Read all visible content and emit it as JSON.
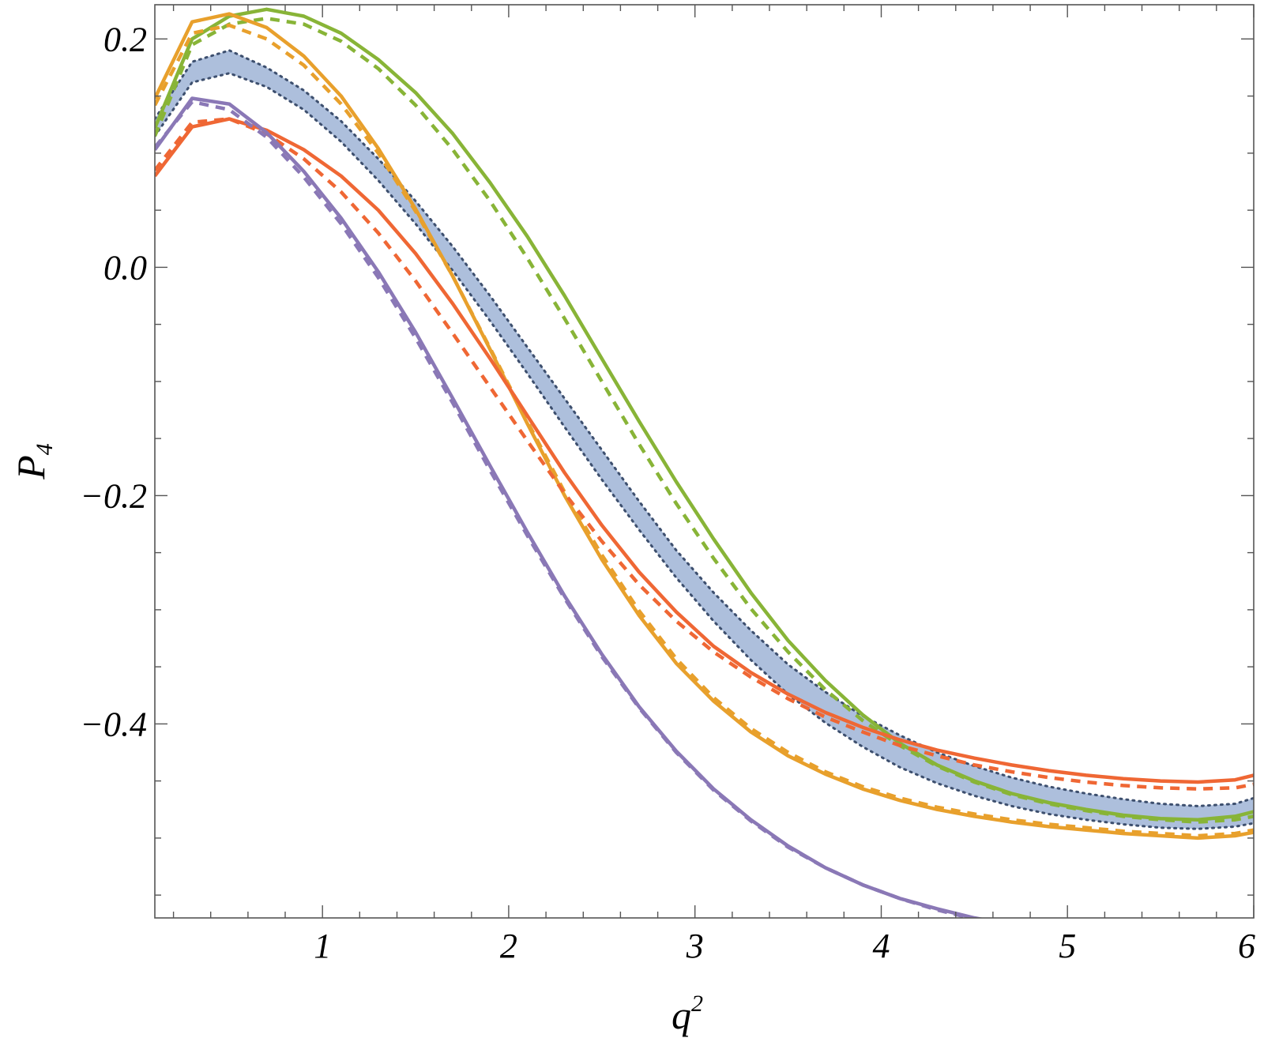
{
  "chart_data": {
    "type": "line",
    "title": "",
    "xlabel_base": "q",
    "xlabel_sup": "2",
    "ylabel_base": "P",
    "ylabel_sub": "4",
    "xlim": [
      0.1,
      6.0
    ],
    "ylim": [
      -0.57,
      0.23
    ],
    "x_ticks": [
      1,
      2,
      3,
      4,
      5,
      6
    ],
    "x_tick_labels": [
      "1",
      "2",
      "3",
      "4",
      "5",
      "6"
    ],
    "y_ticks": [
      0.2,
      0.0,
      -0.2,
      -0.4
    ],
    "y_tick_labels": [
      "0.2",
      "0.0",
      "−0.2",
      "−0.4"
    ],
    "grid": false,
    "legend": "none",
    "x": [
      0.1,
      0.3,
      0.5,
      0.7,
      0.9,
      1.1,
      1.3,
      1.5,
      1.7,
      1.9,
      2.1,
      2.3,
      2.5,
      2.7,
      2.9,
      3.1,
      3.3,
      3.5,
      3.7,
      3.9,
      4.1,
      4.3,
      4.5,
      4.7,
      4.9,
      5.1,
      5.3,
      5.5,
      5.7,
      5.9,
      6.0
    ],
    "band": {
      "color": "#adbfdc",
      "edge_color": "#3d4f6e",
      "upper": [
        0.13,
        0.18,
        0.19,
        0.175,
        0.155,
        0.128,
        0.095,
        0.058,
        0.018,
        -0.025,
        -0.07,
        -0.115,
        -0.16,
        -0.205,
        -0.248,
        -0.285,
        -0.318,
        -0.348,
        -0.372,
        -0.393,
        -0.41,
        -0.425,
        -0.437,
        -0.447,
        -0.455,
        -0.461,
        -0.466,
        -0.47,
        -0.472,
        -0.47,
        -0.465
      ],
      "lower": [
        0.115,
        0.162,
        0.17,
        0.158,
        0.138,
        0.11,
        0.076,
        0.038,
        -0.003,
        -0.047,
        -0.093,
        -0.14,
        -0.186,
        -0.23,
        -0.272,
        -0.31,
        -0.344,
        -0.374,
        -0.399,
        -0.42,
        -0.438,
        -0.452,
        -0.463,
        -0.472,
        -0.479,
        -0.484,
        -0.488,
        -0.491,
        -0.492,
        -0.49,
        -0.487
      ]
    },
    "series": [
      {
        "color": "#88b437",
        "style": "solid",
        "values": [
          0.122,
          0.2,
          0.22,
          0.226,
          0.22,
          0.205,
          0.182,
          0.153,
          0.117,
          0.074,
          0.027,
          -0.025,
          -0.08,
          -0.135,
          -0.188,
          -0.238,
          -0.285,
          -0.327,
          -0.362,
          -0.392,
          -0.417,
          -0.436,
          -0.45,
          -0.461,
          -0.469,
          -0.475,
          -0.48,
          -0.483,
          -0.484,
          -0.481,
          -0.477
        ]
      },
      {
        "color": "#88b437",
        "style": "dashed",
        "values": [
          0.115,
          0.195,
          0.213,
          0.218,
          0.213,
          0.198,
          0.174,
          0.142,
          0.103,
          0.058,
          0.008,
          -0.045,
          -0.1,
          -0.155,
          -0.207,
          -0.255,
          -0.299,
          -0.337,
          -0.37,
          -0.397,
          -0.419,
          -0.437,
          -0.451,
          -0.462,
          -0.47,
          -0.476,
          -0.481,
          -0.484,
          -0.486,
          -0.484,
          -0.481
        ]
      },
      {
        "color": "#e8a02c",
        "style": "solid",
        "values": [
          0.148,
          0.215,
          0.222,
          0.21,
          0.185,
          0.15,
          0.104,
          0.051,
          -0.008,
          -0.072,
          -0.137,
          -0.2,
          -0.256,
          -0.305,
          -0.347,
          -0.38,
          -0.407,
          -0.428,
          -0.444,
          -0.457,
          -0.467,
          -0.475,
          -0.481,
          -0.486,
          -0.49,
          -0.493,
          -0.496,
          -0.498,
          -0.5,
          -0.498,
          -0.495
        ]
      },
      {
        "color": "#e8a02c",
        "style": "dashed",
        "values": [
          0.142,
          0.205,
          0.212,
          0.2,
          0.177,
          0.143,
          0.1,
          0.049,
          -0.008,
          -0.071,
          -0.135,
          -0.197,
          -0.252,
          -0.301,
          -0.343,
          -0.377,
          -0.404,
          -0.425,
          -0.442,
          -0.455,
          -0.465,
          -0.473,
          -0.479,
          -0.484,
          -0.488,
          -0.491,
          -0.494,
          -0.496,
          -0.498,
          -0.496,
          -0.493
        ]
      },
      {
        "color": "#ef6734",
        "style": "solid",
        "values": [
          0.08,
          0.123,
          0.13,
          0.12,
          0.103,
          0.08,
          0.05,
          0.012,
          -0.032,
          -0.08,
          -0.13,
          -0.18,
          -0.226,
          -0.267,
          -0.302,
          -0.332,
          -0.355,
          -0.374,
          -0.39,
          -0.403,
          -0.414,
          -0.423,
          -0.43,
          -0.436,
          -0.441,
          -0.445,
          -0.448,
          -0.45,
          -0.451,
          -0.449,
          -0.445
        ]
      },
      {
        "color": "#ef6734",
        "style": "dashed",
        "values": [
          0.085,
          0.127,
          0.13,
          0.117,
          0.095,
          0.066,
          0.03,
          -0.012,
          -0.058,
          -0.105,
          -0.152,
          -0.198,
          -0.24,
          -0.278,
          -0.31,
          -0.337,
          -0.359,
          -0.378,
          -0.394,
          -0.407,
          -0.419,
          -0.428,
          -0.436,
          -0.442,
          -0.447,
          -0.451,
          -0.454,
          -0.456,
          -0.457,
          -0.456,
          -0.453
        ]
      },
      {
        "color": "#8a78b6",
        "style": "solid",
        "values": [
          0.103,
          0.148,
          0.143,
          0.118,
          0.084,
          0.043,
          -0.004,
          -0.057,
          -0.115,
          -0.174,
          -0.232,
          -0.288,
          -0.339,
          -0.385,
          -0.424,
          -0.457,
          -0.484,
          -0.507,
          -0.526,
          -0.541,
          -0.553,
          -0.562,
          -0.57,
          -0.576,
          -0.58,
          -0.583,
          -0.586,
          -0.588,
          -0.589,
          -0.587,
          -0.583
        ]
      },
      {
        "color": "#8a78b6",
        "style": "dashed",
        "values": [
          0.105,
          0.145,
          0.138,
          0.114,
          0.079,
          0.038,
          -0.009,
          -0.062,
          -0.119,
          -0.178,
          -0.235,
          -0.29,
          -0.341,
          -0.386,
          -0.425,
          -0.458,
          -0.485,
          -0.508,
          -0.526,
          -0.541,
          -0.553,
          -0.563,
          -0.571,
          -0.577,
          -0.582,
          -0.585,
          -0.588,
          -0.59,
          -0.591,
          -0.589,
          -0.586
        ]
      }
    ]
  }
}
